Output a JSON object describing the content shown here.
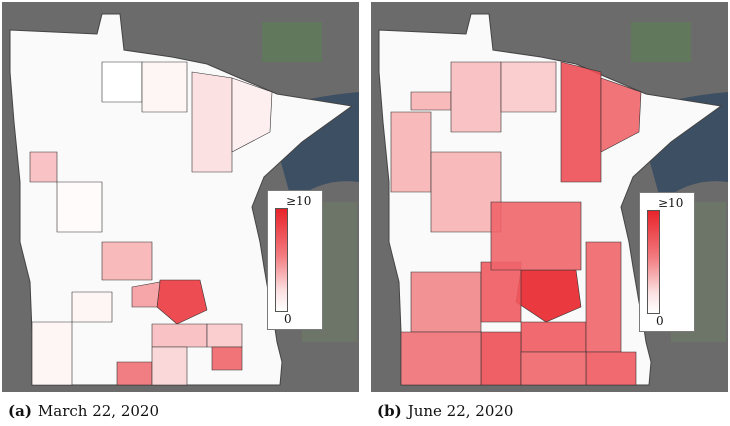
{
  "panels": [
    {
      "label": "(a)",
      "caption": "March 22, 2020",
      "legend": {
        "max_label": "≥10",
        "min_label": "0"
      },
      "colors": {
        "max": "#e8232a",
        "min": "#ffffff"
      },
      "counties": [
        {
          "id": "n-wc",
          "level": 0.0
        },
        {
          "id": "n-c",
          "level": 0.05
        },
        {
          "id": "ne-arrow",
          "level": 0.15
        },
        {
          "id": "ne-shore",
          "level": 0.08
        },
        {
          "id": "w-strip",
          "level": 0.3
        },
        {
          "id": "c-west",
          "level": 0.02
        },
        {
          "id": "sw-a",
          "level": 0.05
        },
        {
          "id": "metro-core",
          "level": 0.9
        },
        {
          "id": "metro-w",
          "level": 0.45
        },
        {
          "id": "metro-n",
          "level": 0.35
        },
        {
          "id": "metro-s",
          "level": 0.3
        },
        {
          "id": "se-a",
          "level": 0.25
        },
        {
          "id": "se-b",
          "level": 0.7
        },
        {
          "id": "s-a",
          "level": 0.65
        },
        {
          "id": "s-b",
          "level": 0.2
        },
        {
          "id": "swr",
          "level": 0.05
        }
      ]
    },
    {
      "label": "(b)",
      "caption": "June 22, 2020",
      "legend": {
        "max_label": "≥10",
        "min_label": "0"
      },
      "colors": {
        "max": "#e8232a",
        "min": "#ffffff"
      },
      "counties": [
        {
          "id": "n-wc",
          "level": 0.35
        },
        {
          "id": "n-c",
          "level": 0.3
        },
        {
          "id": "n-red",
          "level": 0.8
        },
        {
          "id": "ne-arrow",
          "level": 0.7
        },
        {
          "id": "ne-shore",
          "level": 0.25
        },
        {
          "id": "w-strip",
          "level": 0.35
        },
        {
          "id": "c-west",
          "level": 0.35
        },
        {
          "id": "sw-a",
          "level": 0.55
        },
        {
          "id": "metro-core",
          "level": 1.0
        },
        {
          "id": "metro-w",
          "level": 0.75
        },
        {
          "id": "metro-n",
          "level": 0.7
        },
        {
          "id": "metro-s",
          "level": 0.75
        },
        {
          "id": "se-a",
          "level": 0.7
        },
        {
          "id": "se-b",
          "level": 0.75
        },
        {
          "id": "s-a",
          "level": 0.8
        },
        {
          "id": "s-b",
          "level": 0.7
        },
        {
          "id": "swr",
          "level": 0.65
        }
      ]
    }
  ]
}
